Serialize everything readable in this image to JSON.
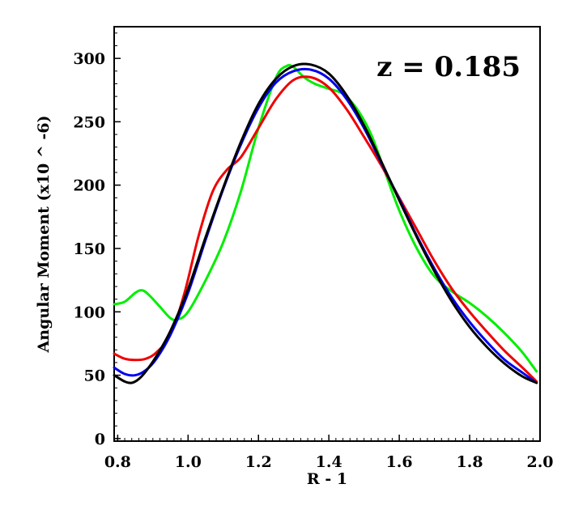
{
  "chart_data": {
    "type": "line",
    "title": "",
    "xlabel": "R - 1",
    "ylabel": "Angular Moment (x10 ^ -6)",
    "annotation": "z = 0.185",
    "xlim": [
      0.79,
      2.0
    ],
    "ylim": [
      -2,
      325
    ],
    "xticks": [
      "0.8",
      "1.0",
      "1.2",
      "1.4",
      "1.6",
      "1.8",
      "2.0"
    ],
    "yticks": [
      "0",
      "50",
      "100",
      "150",
      "200",
      "250",
      "300"
    ],
    "grid": false,
    "legend": "none",
    "series": [
      {
        "color": "#00ee00",
        "x": [
          0.79,
          0.82,
          0.85,
          0.87,
          0.89,
          0.92,
          0.95,
          0.97,
          1.0,
          1.05,
          1.1,
          1.15,
          1.2,
          1.25,
          1.28,
          1.3,
          1.33,
          1.36,
          1.4,
          1.44,
          1.48,
          1.52,
          1.56,
          1.6,
          1.65,
          1.7,
          1.75,
          1.8,
          1.85,
          1.9,
          1.95,
          1.99
        ],
        "y": [
          106,
          108,
          115,
          117,
          113,
          104,
          95,
          94,
          100,
          125,
          155,
          195,
          245,
          285,
          294,
          293,
          285,
          280,
          276,
          272,
          260,
          240,
          210,
          180,
          150,
          128,
          116,
          107,
          96,
          83,
          68,
          53
        ]
      },
      {
        "color": "#ee0000",
        "x": [
          0.79,
          0.82,
          0.85,
          0.88,
          0.91,
          0.95,
          0.99,
          1.03,
          1.07,
          1.11,
          1.15,
          1.2,
          1.25,
          1.3,
          1.35,
          1.4,
          1.45,
          1.5,
          1.55,
          1.6,
          1.65,
          1.7,
          1.75,
          1.8,
          1.85,
          1.9,
          1.95,
          1.99
        ],
        "y": [
          67,
          63,
          62,
          63,
          68,
          82,
          115,
          160,
          195,
          212,
          222,
          245,
          268,
          283,
          285,
          277,
          260,
          238,
          215,
          190,
          165,
          140,
          118,
          100,
          84,
          69,
          56,
          45
        ]
      },
      {
        "color": "#0000ee",
        "x": [
          0.79,
          0.82,
          0.85,
          0.88,
          0.91,
          0.95,
          1.0,
          1.05,
          1.1,
          1.15,
          1.2,
          1.25,
          1.3,
          1.35,
          1.4,
          1.45,
          1.5,
          1.55,
          1.6,
          1.65,
          1.7,
          1.75,
          1.8,
          1.85,
          1.9,
          1.95,
          1.99
        ],
        "y": [
          56,
          51,
          50,
          54,
          63,
          82,
          115,
          157,
          197,
          232,
          261,
          281,
          290,
          291,
          284,
          268,
          245,
          217,
          189,
          160,
          134,
          111,
          92,
          76,
          62,
          52,
          44
        ]
      },
      {
        "color": "#000000",
        "x": [
          0.79,
          0.82,
          0.84,
          0.86,
          0.88,
          0.91,
          0.95,
          1.0,
          1.05,
          1.1,
          1.15,
          1.2,
          1.25,
          1.3,
          1.35,
          1.4,
          1.45,
          1.5,
          1.55,
          1.6,
          1.65,
          1.7,
          1.75,
          1.8,
          1.85,
          1.9,
          1.95,
          1.99
        ],
        "y": [
          50,
          45,
          44,
          47,
          53,
          65,
          85,
          118,
          159,
          198,
          234,
          264,
          284,
          294,
          295,
          288,
          271,
          247,
          218,
          188,
          159,
          132,
          108,
          88,
          72,
          59,
          49,
          44
        ]
      }
    ]
  }
}
